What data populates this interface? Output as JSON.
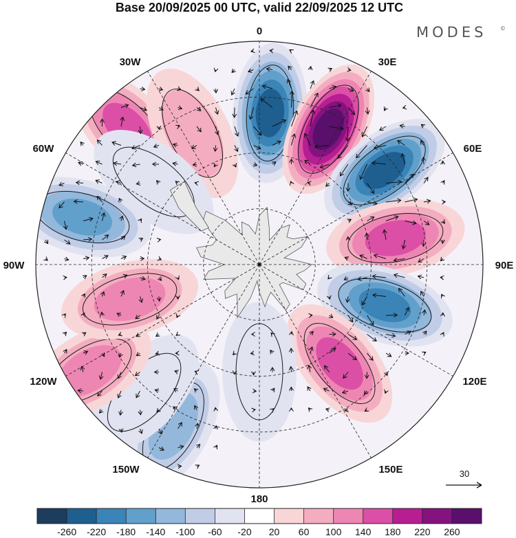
{
  "header": {
    "title": "Base 20/09/2025 00 UTC, valid 22/09/2025 12 UTC",
    "brand": "MODES",
    "brand_mark": "©"
  },
  "map": {
    "projection": "south-polar-stereographic",
    "longitude_labels": [
      "0",
      "30E",
      "60E",
      "90E",
      "120E",
      "150E",
      "180",
      "150W",
      "120W",
      "90W",
      "60W",
      "30W"
    ],
    "anomalies": [
      {
        "lon": 4,
        "lat_ring": 0.68,
        "value": -250
      },
      {
        "lon": 27,
        "lat_ring": 0.68,
        "value": 270
      },
      {
        "lon": 53,
        "lat_ring": 0.7,
        "value": -250
      },
      {
        "lon": 79,
        "lat_ring": 0.62,
        "value": 180
      },
      {
        "lon": 108,
        "lat_ring": 0.59,
        "value": -200
      },
      {
        "lon": 141,
        "lat_ring": 0.57,
        "value": 150
      },
      {
        "lon": 180,
        "lat_ring": 0.48,
        "value": -60
      },
      {
        "lon": 208,
        "lat_ring": 0.82,
        "value": -110
      },
      {
        "lon": 222,
        "lat_ring": 0.77,
        "value": -60
      },
      {
        "lon": 238,
        "lat_ring": 0.9,
        "value": 110
      },
      {
        "lon": 255,
        "lat_ring": 0.6,
        "value": 110
      },
      {
        "lon": 285,
        "lat_ring": 0.82,
        "value": -170
      },
      {
        "lon": 316,
        "lat_ring": 0.85,
        "value": 160
      },
      {
        "lon": 333,
        "lat_ring": 0.66,
        "value": 90
      },
      {
        "lon": 308,
        "lat_ring": 0.6,
        "value": -40
      }
    ]
  },
  "reference_vector": {
    "label": "30"
  },
  "colorbar": {
    "tick_labels": [
      "-260",
      "-220",
      "-180",
      "-140",
      "-100",
      "-60",
      "-20",
      "20",
      "60",
      "100",
      "140",
      "180",
      "220",
      "260"
    ],
    "colors": [
      "#1c3d5c",
      "#1f5f8f",
      "#3b84b8",
      "#62a0cc",
      "#93b8dc",
      "#c1cde6",
      "#e2e3f1",
      "#ffffff",
      "#f8d6d8",
      "#f4adc0",
      "#ee86b3",
      "#dc4fa6",
      "#b71e92",
      "#84137f",
      "#5a0f6c"
    ]
  }
}
